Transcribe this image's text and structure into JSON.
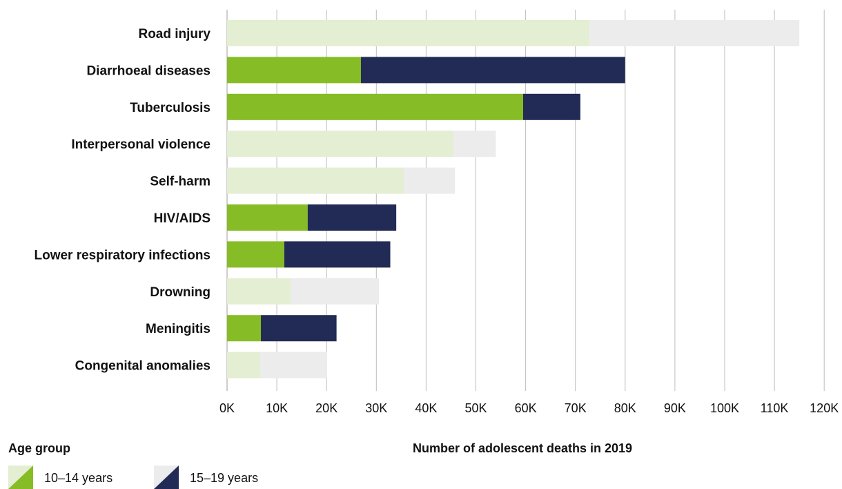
{
  "chart_data": {
    "type": "bar",
    "orientation": "horizontal",
    "stacked": true,
    "categories": [
      "Road injury",
      "Diarrhoeal diseases",
      "Tuberculosis",
      "Interpersonal violence",
      "Self-harm",
      "HIV/AIDS",
      "Lower respiratory infections",
      "Drowning",
      "Meningitis",
      "Congenital anomalies"
    ],
    "highlighted": [
      false,
      true,
      true,
      false,
      false,
      true,
      true,
      false,
      true,
      false
    ],
    "series": [
      {
        "name": "10–14 years",
        "values": [
          72800,
          26900,
          59500,
          45500,
          35500,
          16200,
          11500,
          12800,
          6800,
          6700
        ]
      },
      {
        "name": "15–19 years",
        "values": [
          42200,
          53100,
          11500,
          8500,
          10300,
          17800,
          21300,
          17700,
          15200,
          13400
        ]
      }
    ],
    "xlabel": "Number of adolescent deaths in 2019",
    "xlim": [
      0,
      120000
    ],
    "xticks": [
      "0K",
      "10K",
      "20K",
      "30K",
      "40K",
      "50K",
      "60K",
      "70K",
      "80K",
      "90K",
      "100K",
      "110K",
      "120K"
    ],
    "grid": true,
    "legend": {
      "title": "Age group",
      "position": "bottom-left"
    },
    "colors": {
      "series1": "#86bc25",
      "series2": "#222b55",
      "series1_muted": "#e4eed2",
      "series2_muted": "#ececec",
      "grid": "#bdbdbd"
    }
  }
}
